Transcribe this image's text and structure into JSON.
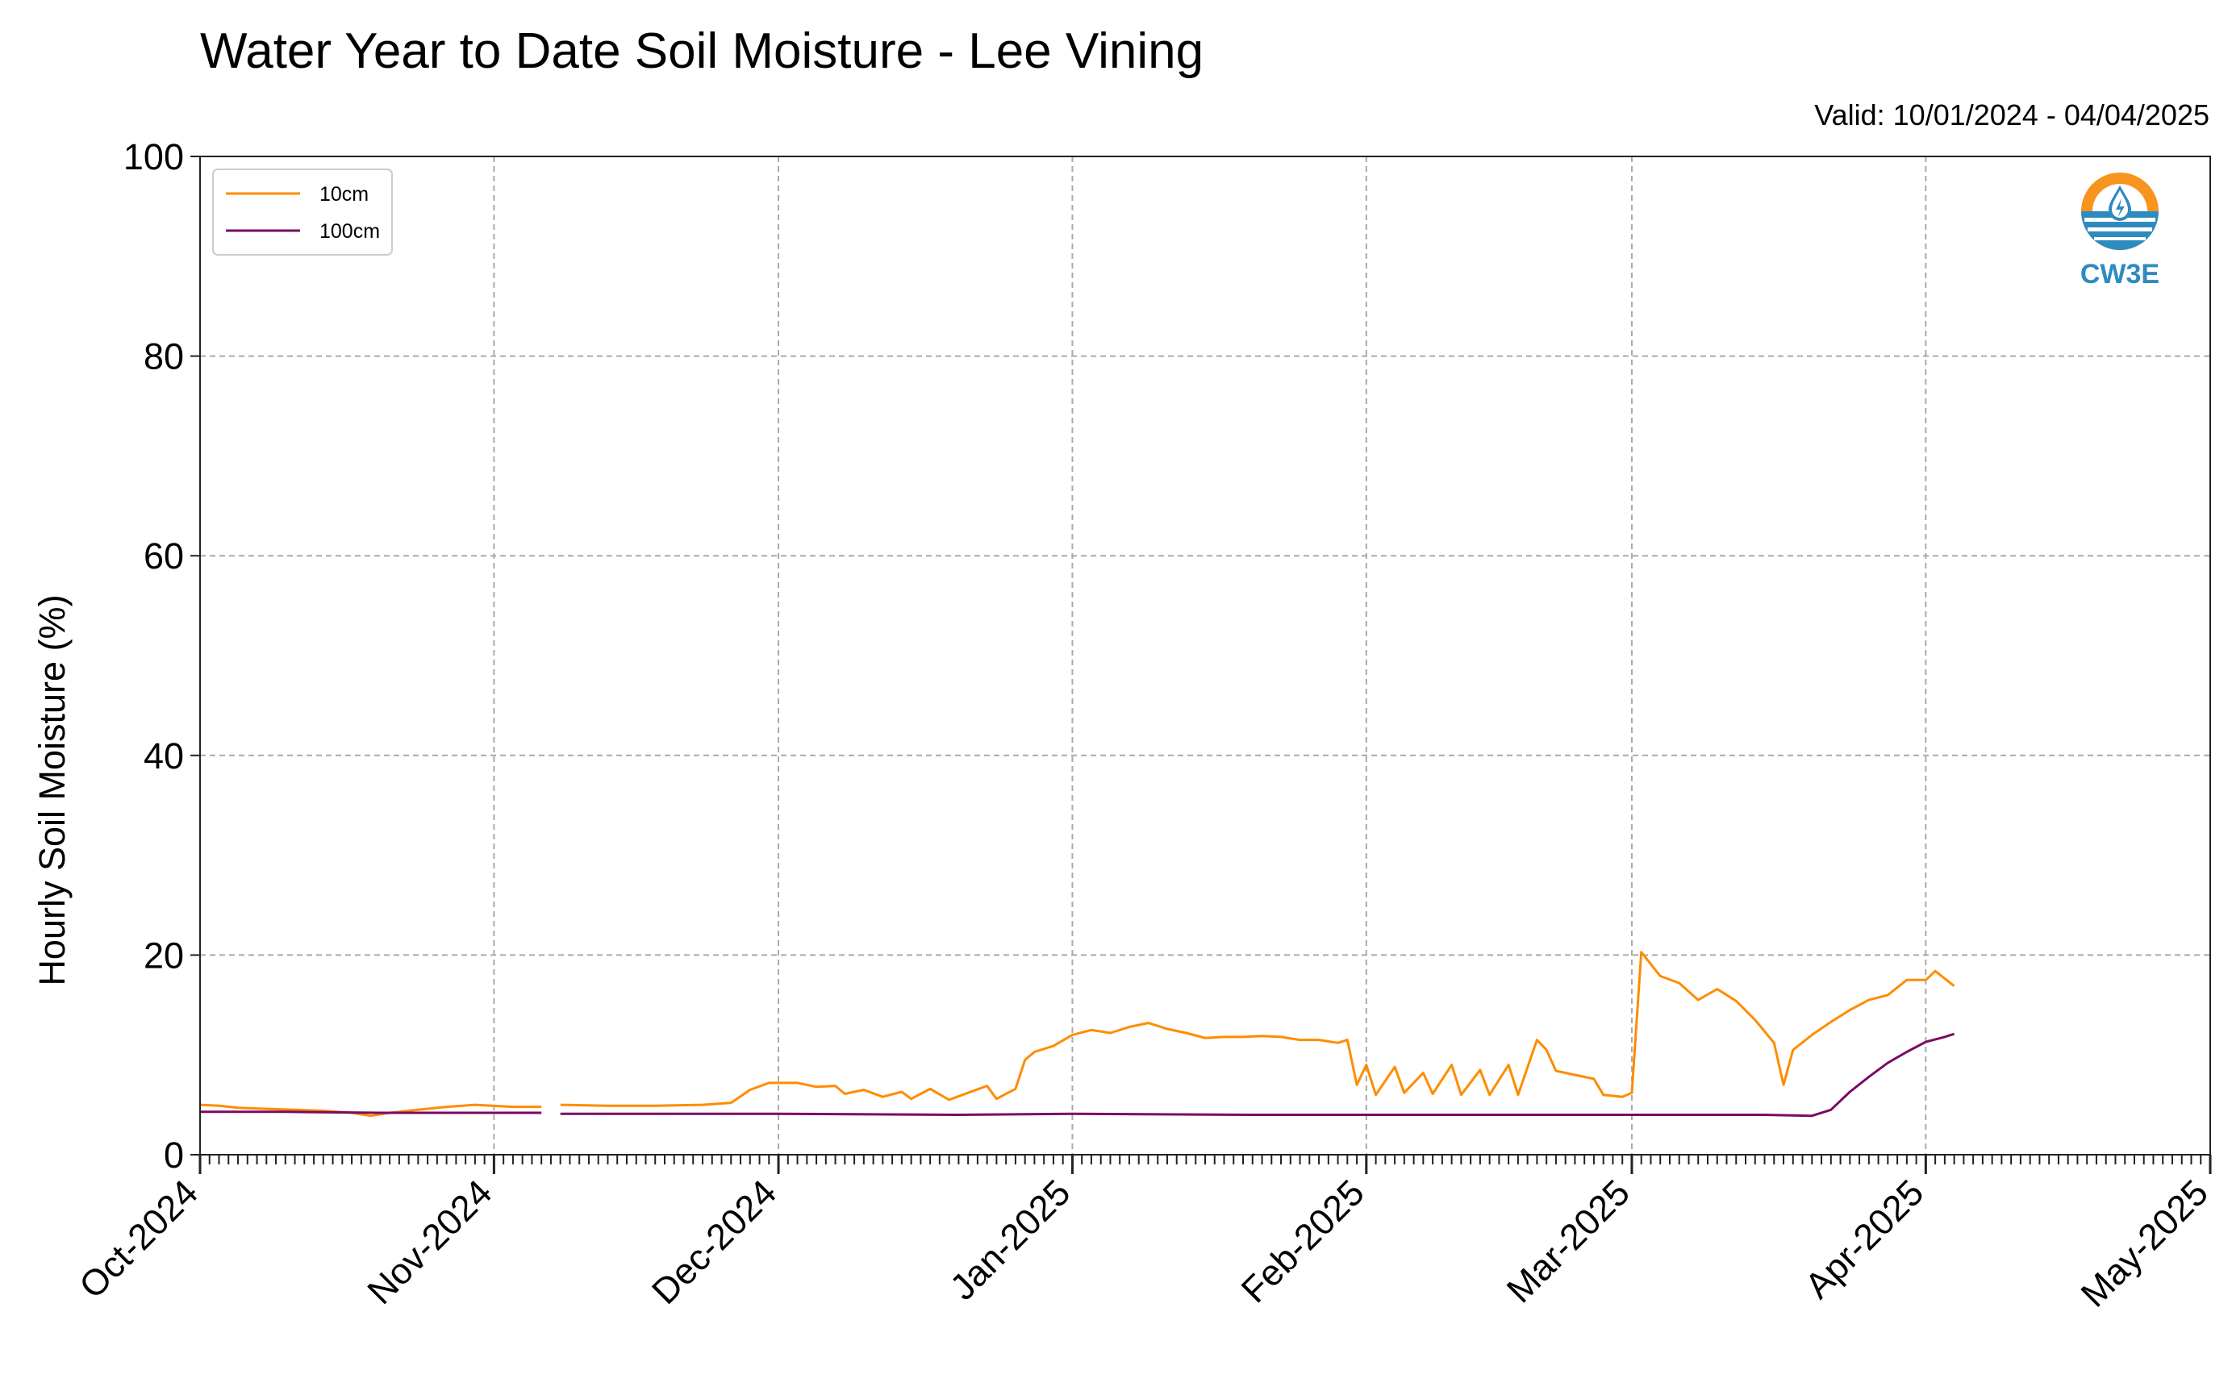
{
  "title": "Water Year to Date Soil Moisture - Lee Vining",
  "valid": "Valid: 10/01/2024 - 04/04/2025",
  "logo_text": "CW3E",
  "chart_data": {
    "type": "line",
    "title": "Water Year to Date Soil Moisture - Lee Vining",
    "xlabel": "",
    "ylabel": "Hourly Soil Moisture (%)",
    "xlim": [
      "2024-10-01",
      "2025-05-01"
    ],
    "ylim": [
      0,
      100
    ],
    "yticks": [
      0,
      20,
      40,
      60,
      80,
      100
    ],
    "xticks": [
      "2024-10-01",
      "2024-11-01",
      "2024-12-01",
      "2025-01-01",
      "2025-02-01",
      "2025-03-01",
      "2025-04-01",
      "2025-05-01"
    ],
    "xtick_labels": [
      "Oct-2024",
      "Nov-2024",
      "Dec-2024",
      "Jan-2025",
      "Feb-2025",
      "Mar-2025",
      "Apr-2025",
      "May-2025"
    ],
    "grid": true,
    "legend": "top-left",
    "series": [
      {
        "name": "10cm",
        "color": "#ff8c00",
        "segments": [
          [
            [
              "2024-10-01",
              5.0
            ],
            [
              "2024-10-03",
              4.9
            ],
            [
              "2024-10-05",
              4.7
            ],
            [
              "2024-10-08",
              4.6
            ],
            [
              "2024-10-11",
              4.5
            ],
            [
              "2024-10-14",
              4.4
            ],
            [
              "2024-10-17",
              4.2
            ],
            [
              "2024-10-19",
              3.9
            ],
            [
              "2024-10-21",
              4.2
            ],
            [
              "2024-10-24",
              4.5
            ],
            [
              "2024-10-27",
              4.8
            ],
            [
              "2024-10-30",
              5.0
            ],
            [
              "2024-11-03",
              4.8
            ],
            [
              "2024-11-06",
              4.8
            ]
          ],
          [
            [
              "2024-11-08",
              5.0
            ],
            [
              "2024-11-13",
              4.9
            ],
            [
              "2024-11-18",
              4.9
            ],
            [
              "2024-11-23",
              5.0
            ],
            [
              "2024-11-26",
              5.2
            ],
            [
              "2024-11-28",
              6.5
            ],
            [
              "2024-11-30",
              7.2
            ],
            [
              "2024-12-03",
              7.2
            ],
            [
              "2024-12-05",
              6.8
            ],
            [
              "2024-12-07",
              6.9
            ],
            [
              "2024-12-08",
              6.1
            ],
            [
              "2024-12-10",
              6.5
            ],
            [
              "2024-12-12",
              5.8
            ],
            [
              "2024-12-14",
              6.3
            ],
            [
              "2024-12-15",
              5.6
            ],
            [
              "2024-12-17",
              6.6
            ],
            [
              "2024-12-19",
              5.5
            ],
            [
              "2024-12-21",
              6.2
            ],
            [
              "2024-12-23",
              6.9
            ],
            [
              "2024-12-24",
              5.6
            ],
            [
              "2024-12-26",
              6.6
            ],
            [
              "2024-12-27",
              9.5
            ],
            [
              "2024-12-28",
              10.3
            ],
            [
              "2024-12-30",
              10.9
            ],
            [
              "2025-01-01",
              12.0
            ],
            [
              "2025-01-03",
              12.5
            ],
            [
              "2025-01-05",
              12.2
            ],
            [
              "2025-01-07",
              12.8
            ],
            [
              "2025-01-09",
              13.2
            ],
            [
              "2025-01-11",
              12.6
            ],
            [
              "2025-01-13",
              12.2
            ],
            [
              "2025-01-15",
              11.7
            ],
            [
              "2025-01-17",
              11.8
            ],
            [
              "2025-01-19",
              11.8
            ],
            [
              "2025-01-21",
              11.9
            ],
            [
              "2025-01-23",
              11.8
            ],
            [
              "2025-01-25",
              11.5
            ],
            [
              "2025-01-27",
              11.5
            ],
            [
              "2025-01-29",
              11.2
            ],
            [
              "2025-01-30",
              11.5
            ],
            [
              "2025-01-31",
              7.0
            ],
            [
              "2025-02-01",
              9.0
            ],
            [
              "2025-02-02",
              6.0
            ],
            [
              "2025-02-04",
              8.8
            ],
            [
              "2025-02-05",
              6.2
            ],
            [
              "2025-02-07",
              8.2
            ],
            [
              "2025-02-08",
              6.1
            ],
            [
              "2025-02-10",
              9.0
            ],
            [
              "2025-02-11",
              6.0
            ],
            [
              "2025-02-13",
              8.5
            ],
            [
              "2025-02-14",
              6.0
            ],
            [
              "2025-02-16",
              9.0
            ],
            [
              "2025-02-17",
              6.0
            ],
            [
              "2025-02-19",
              11.5
            ],
            [
              "2025-02-20",
              10.5
            ],
            [
              "2025-02-21",
              8.4
            ],
            [
              "2025-02-23",
              8.0
            ],
            [
              "2025-02-25",
              7.6
            ],
            [
              "2025-02-26",
              6.0
            ],
            [
              "2025-02-28",
              5.8
            ],
            [
              "2025-03-01",
              6.2
            ],
            [
              "2025-03-02",
              20.3
            ],
            [
              "2025-03-04",
              17.9
            ],
            [
              "2025-03-06",
              17.2
            ],
            [
              "2025-03-08",
              15.5
            ],
            [
              "2025-03-10",
              16.6
            ],
            [
              "2025-03-12",
              15.4
            ],
            [
              "2025-03-14",
              13.5
            ],
            [
              "2025-03-16",
              11.2
            ],
            [
              "2025-03-17",
              7.0
            ],
            [
              "2025-03-18",
              10.5
            ],
            [
              "2025-03-20",
              12.0
            ],
            [
              "2025-03-22",
              13.3
            ],
            [
              "2025-03-24",
              14.5
            ],
            [
              "2025-03-26",
              15.5
            ],
            [
              "2025-03-28",
              16.0
            ],
            [
              "2025-03-30",
              17.5
            ],
            [
              "2025-04-01",
              17.5
            ],
            [
              "2025-04-02",
              18.4
            ],
            [
              "2025-04-04",
              16.9
            ]
          ]
        ]
      },
      {
        "name": "100cm",
        "color": "#7b0a63",
        "segments": [
          [
            [
              "2024-10-01",
              4.3
            ],
            [
              "2024-10-10",
              4.3
            ],
            [
              "2024-10-20",
              4.2
            ],
            [
              "2024-10-31",
              4.2
            ],
            [
              "2024-11-06",
              4.2
            ]
          ],
          [
            [
              "2024-11-08",
              4.1
            ],
            [
              "2024-11-20",
              4.1
            ],
            [
              "2024-12-01",
              4.1
            ],
            [
              "2024-12-20",
              4.0
            ],
            [
              "2025-01-01",
              4.1
            ],
            [
              "2025-01-20",
              4.0
            ],
            [
              "2025-02-10",
              4.0
            ],
            [
              "2025-03-01",
              4.0
            ],
            [
              "2025-03-15",
              4.0
            ],
            [
              "2025-03-20",
              3.9
            ],
            [
              "2025-03-22",
              4.5
            ],
            [
              "2025-03-24",
              6.3
            ],
            [
              "2025-03-26",
              7.8
            ],
            [
              "2025-03-28",
              9.2
            ],
            [
              "2025-03-30",
              10.3
            ],
            [
              "2025-04-01",
              11.3
            ],
            [
              "2025-04-03",
              11.8
            ],
            [
              "2025-04-04",
              12.1
            ]
          ]
        ]
      }
    ]
  }
}
